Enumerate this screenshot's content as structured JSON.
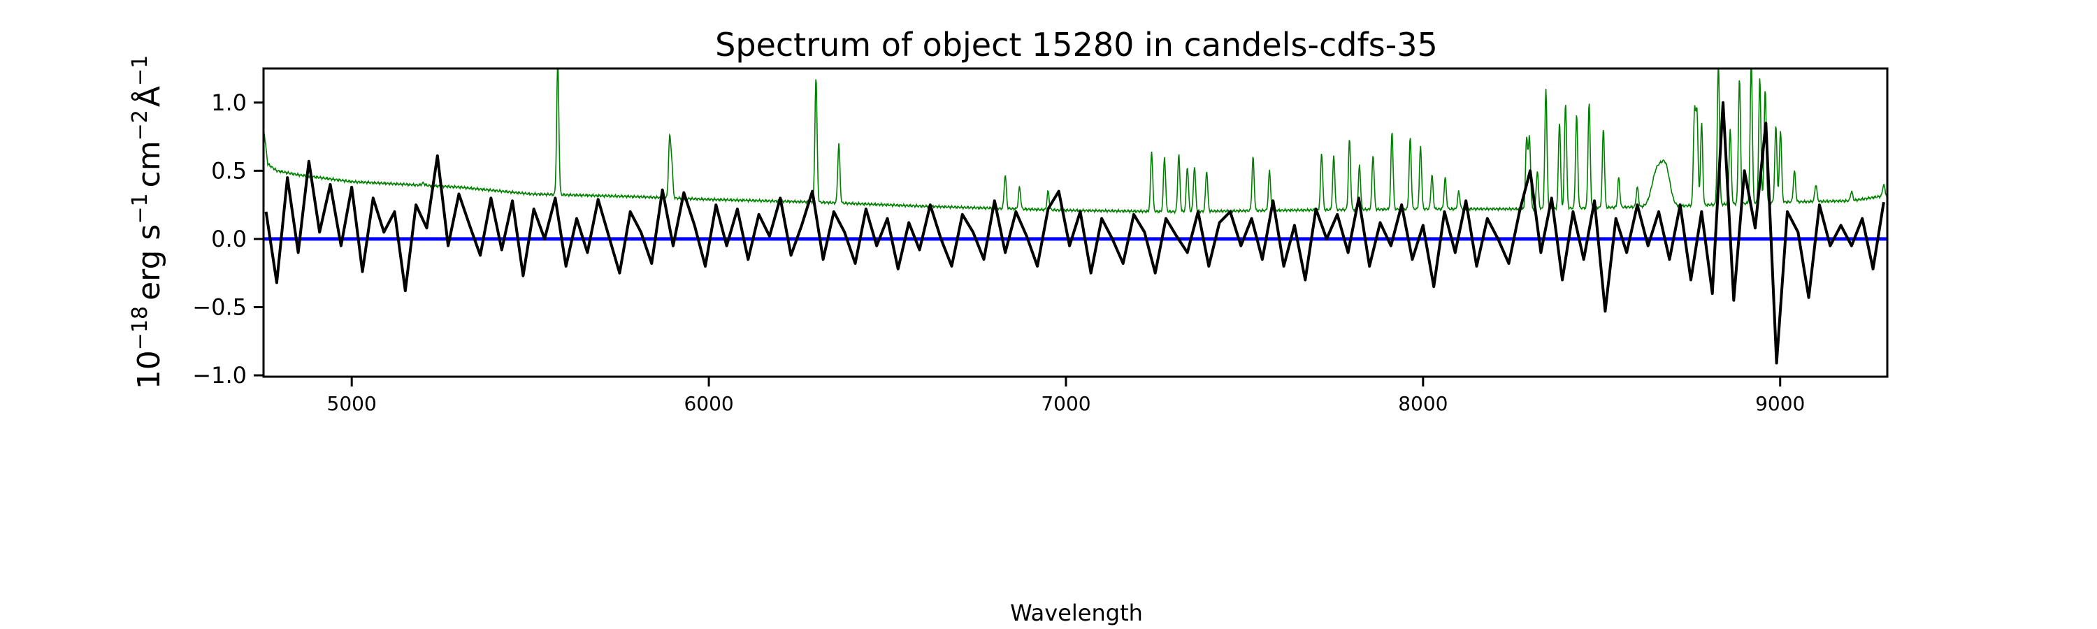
{
  "chart_data": {
    "type": "line",
    "title": "Spectrum of object 15280 in candels-cdfs-35",
    "xlabel": "Wavelength",
    "ylabel": {
      "base": "10",
      "exp1": "−18",
      "unit1": "erg s",
      "exp2": "−1",
      "unit2": "cm",
      "exp3": "−2",
      "unit3": "Å",
      "exp4": "−1"
    },
    "xlim": [
      4753,
      9300
    ],
    "ylim": [
      -1.01,
      1.25
    ],
    "xticks": [
      5000,
      6000,
      7000,
      8000,
      9000
    ],
    "xtick_labels": [
      "5000",
      "6000",
      "7000",
      "8000",
      "9000"
    ],
    "yticks": [
      -1.0,
      -0.5,
      0.0,
      0.5,
      1.0
    ],
    "ytick_labels": [
      "−1.0",
      "−0.5",
      "0.0",
      "0.5",
      "1.0"
    ],
    "grid": false,
    "colors": {
      "flux": "#000000",
      "error": "#008000",
      "zero": "#0000ff"
    },
    "series": [
      {
        "name": "flux",
        "points": [
          [
            4760,
            0.2
          ],
          [
            4790,
            -0.32
          ],
          [
            4820,
            0.45
          ],
          [
            4850,
            -0.1
          ],
          [
            4880,
            0.57
          ],
          [
            4910,
            0.05
          ],
          [
            4940,
            0.4
          ],
          [
            4970,
            -0.05
          ],
          [
            5000,
            0.38
          ],
          [
            5030,
            -0.24
          ],
          [
            5060,
            0.3
          ],
          [
            5090,
            0.05
          ],
          [
            5120,
            0.2
          ],
          [
            5150,
            -0.38
          ],
          [
            5180,
            0.25
          ],
          [
            5210,
            0.08
          ],
          [
            5240,
            0.61
          ],
          [
            5270,
            -0.05
          ],
          [
            5300,
            0.33
          ],
          [
            5330,
            0.1
          ],
          [
            5360,
            -0.12
          ],
          [
            5390,
            0.3
          ],
          [
            5420,
            -0.08
          ],
          [
            5450,
            0.28
          ],
          [
            5480,
            -0.27
          ],
          [
            5510,
            0.22
          ],
          [
            5540,
            0.0
          ],
          [
            5570,
            0.3
          ],
          [
            5600,
            -0.2
          ],
          [
            5630,
            0.15
          ],
          [
            5660,
            -0.1
          ],
          [
            5690,
            0.29
          ],
          [
            5720,
            0.02
          ],
          [
            5750,
            -0.25
          ],
          [
            5780,
            0.2
          ],
          [
            5810,
            0.05
          ],
          [
            5840,
            -0.18
          ],
          [
            5870,
            0.36
          ],
          [
            5900,
            -0.05
          ],
          [
            5930,
            0.34
          ],
          [
            5960,
            0.1
          ],
          [
            5990,
            -0.2
          ],
          [
            6020,
            0.25
          ],
          [
            6050,
            -0.05
          ],
          [
            6080,
            0.22
          ],
          [
            6110,
            -0.15
          ],
          [
            6140,
            0.18
          ],
          [
            6170,
            0.02
          ],
          [
            6200,
            0.3
          ],
          [
            6230,
            -0.12
          ],
          [
            6260,
            0.1
          ],
          [
            6290,
            0.35
          ],
          [
            6320,
            -0.15
          ],
          [
            6350,
            0.2
          ],
          [
            6380,
            0.05
          ],
          [
            6410,
            -0.18
          ],
          [
            6440,
            0.22
          ],
          [
            6470,
            -0.05
          ],
          [
            6500,
            0.15
          ],
          [
            6530,
            -0.22
          ],
          [
            6560,
            0.12
          ],
          [
            6590,
            -0.08
          ],
          [
            6620,
            0.25
          ],
          [
            6650,
            0.0
          ],
          [
            6680,
            -0.2
          ],
          [
            6710,
            0.18
          ],
          [
            6740,
            0.05
          ],
          [
            6770,
            -0.15
          ],
          [
            6800,
            0.28
          ],
          [
            6830,
            -0.1
          ],
          [
            6860,
            0.2
          ],
          [
            6890,
            0.02
          ],
          [
            6920,
            -0.2
          ],
          [
            6950,
            0.22
          ],
          [
            6980,
            0.35
          ],
          [
            7010,
            -0.05
          ],
          [
            7040,
            0.2
          ],
          [
            7070,
            -0.25
          ],
          [
            7100,
            0.15
          ],
          [
            7130,
            0.0
          ],
          [
            7160,
            -0.18
          ],
          [
            7190,
            0.18
          ],
          [
            7220,
            0.05
          ],
          [
            7250,
            -0.25
          ],
          [
            7280,
            0.15
          ],
          [
            7310,
            0.02
          ],
          [
            7340,
            -0.1
          ],
          [
            7370,
            0.2
          ],
          [
            7400,
            -0.2
          ],
          [
            7430,
            0.12
          ],
          [
            7460,
            0.2
          ],
          [
            7490,
            -0.05
          ],
          [
            7520,
            0.15
          ],
          [
            7550,
            -0.15
          ],
          [
            7580,
            0.28
          ],
          [
            7610,
            -0.2
          ],
          [
            7640,
            0.1
          ],
          [
            7670,
            -0.3
          ],
          [
            7700,
            0.22
          ],
          [
            7730,
            0.0
          ],
          [
            7760,
            0.18
          ],
          [
            7790,
            -0.1
          ],
          [
            7820,
            0.3
          ],
          [
            7850,
            -0.2
          ],
          [
            7880,
            0.12
          ],
          [
            7910,
            -0.05
          ],
          [
            7940,
            0.25
          ],
          [
            7970,
            -0.15
          ],
          [
            8000,
            0.1
          ],
          [
            8030,
            -0.35
          ],
          [
            8060,
            0.2
          ],
          [
            8090,
            -0.1
          ],
          [
            8120,
            0.28
          ],
          [
            8150,
            -0.2
          ],
          [
            8180,
            0.15
          ],
          [
            8210,
            0.0
          ],
          [
            8240,
            -0.18
          ],
          [
            8270,
            0.2
          ],
          [
            8300,
            0.5
          ],
          [
            8330,
            -0.1
          ],
          [
            8360,
            0.3
          ],
          [
            8390,
            -0.3
          ],
          [
            8420,
            0.2
          ],
          [
            8450,
            -0.15
          ],
          [
            8480,
            0.28
          ],
          [
            8510,
            -0.53
          ],
          [
            8540,
            0.15
          ],
          [
            8570,
            -0.1
          ],
          [
            8600,
            0.25
          ],
          [
            8630,
            -0.05
          ],
          [
            8660,
            0.2
          ],
          [
            8690,
            -0.15
          ],
          [
            8720,
            0.25
          ],
          [
            8750,
            -0.3
          ],
          [
            8780,
            0.2
          ],
          [
            8810,
            -0.4
          ],
          [
            8840,
            1.0
          ],
          [
            8870,
            -0.45
          ],
          [
            8900,
            0.5
          ],
          [
            8930,
            0.08
          ],
          [
            8960,
            0.85
          ],
          [
            8990,
            -0.91
          ],
          [
            9020,
            0.2
          ],
          [
            9050,
            0.05
          ],
          [
            9080,
            -0.43
          ],
          [
            9110,
            0.25
          ],
          [
            9140,
            -0.05
          ],
          [
            9170,
            0.1
          ],
          [
            9200,
            -0.05
          ],
          [
            9230,
            0.15
          ],
          [
            9260,
            -0.22
          ],
          [
            9290,
            0.27
          ]
        ]
      },
      {
        "name": "error",
        "continuum": [
          [
            4753,
            0.82
          ],
          [
            4765,
            0.55
          ],
          [
            4790,
            0.5
          ],
          [
            4850,
            0.47
          ],
          [
            5000,
            0.42
          ],
          [
            5300,
            0.38
          ],
          [
            5500,
            0.33
          ],
          [
            5800,
            0.31
          ],
          [
            6000,
            0.29
          ],
          [
            6300,
            0.27
          ],
          [
            6600,
            0.24
          ],
          [
            7000,
            0.21
          ],
          [
            7300,
            0.2
          ],
          [
            7600,
            0.21
          ],
          [
            8000,
            0.22
          ],
          [
            8300,
            0.22
          ],
          [
            8500,
            0.23
          ],
          [
            8700,
            0.24
          ],
          [
            9000,
            0.27
          ],
          [
            9200,
            0.28
          ],
          [
            9300,
            0.32
          ]
        ],
        "lines": [
          [
            5200,
            0.41,
            4
          ],
          [
            5577,
            1.3,
            3
          ],
          [
            5890,
            0.72,
            3
          ],
          [
            5896,
            0.55,
            3
          ],
          [
            6300,
            1.19,
            3
          ],
          [
            6364,
            0.7,
            3
          ],
          [
            6830,
            0.47,
            3
          ],
          [
            6870,
            0.38,
            3
          ],
          [
            6950,
            0.35,
            3
          ],
          [
            7240,
            0.64,
            3
          ],
          [
            7276,
            0.6,
            3
          ],
          [
            7316,
            0.62,
            3
          ],
          [
            7340,
            0.53,
            3
          ],
          [
            7360,
            0.53,
            3
          ],
          [
            7394,
            0.5,
            3
          ],
          [
            7524,
            0.6,
            3
          ],
          [
            7570,
            0.5,
            3
          ],
          [
            7716,
            0.63,
            3
          ],
          [
            7750,
            0.61,
            3
          ],
          [
            7794,
            0.73,
            3
          ],
          [
            7822,
            0.54,
            3
          ],
          [
            7860,
            0.62,
            3
          ],
          [
            7913,
            0.79,
            3
          ],
          [
            7964,
            0.74,
            3
          ],
          [
            7993,
            0.68,
            3
          ],
          [
            8025,
            0.47,
            3
          ],
          [
            8062,
            0.45,
            3
          ],
          [
            8100,
            0.35,
            3
          ],
          [
            8290,
            0.74,
            3
          ],
          [
            8298,
            0.74,
            3
          ],
          [
            8320,
            0.5,
            3
          ],
          [
            8344,
            1.1,
            3
          ],
          [
            8382,
            0.86,
            3
          ],
          [
            8399,
            1.0,
            3
          ],
          [
            8430,
            0.91,
            3
          ],
          [
            8465,
            1.0,
            3
          ],
          [
            8505,
            0.81,
            3
          ],
          [
            8548,
            0.45,
            3
          ],
          [
            8600,
            0.38,
            3
          ],
          [
            8655,
            0.5,
            14
          ],
          [
            8680,
            0.5,
            12
          ],
          [
            8760,
            0.92,
            3
          ],
          [
            8767,
            0.92,
            3
          ],
          [
            8780,
            0.85,
            3
          ],
          [
            8827,
            1.3,
            3
          ],
          [
            8860,
            0.8,
            3
          ],
          [
            8886,
            1.18,
            3
          ],
          [
            8919,
            1.3,
            3
          ],
          [
            8943,
            1.18,
            3
          ],
          [
            8958,
            1.1,
            3
          ],
          [
            8988,
            0.83,
            3
          ],
          [
            9001,
            0.8,
            3
          ],
          [
            9040,
            0.5,
            3
          ],
          [
            9100,
            0.4,
            3
          ],
          [
            9200,
            0.35,
            3
          ],
          [
            9290,
            0.4,
            3
          ]
        ]
      },
      {
        "name": "zero",
        "value": 0.0
      }
    ]
  }
}
